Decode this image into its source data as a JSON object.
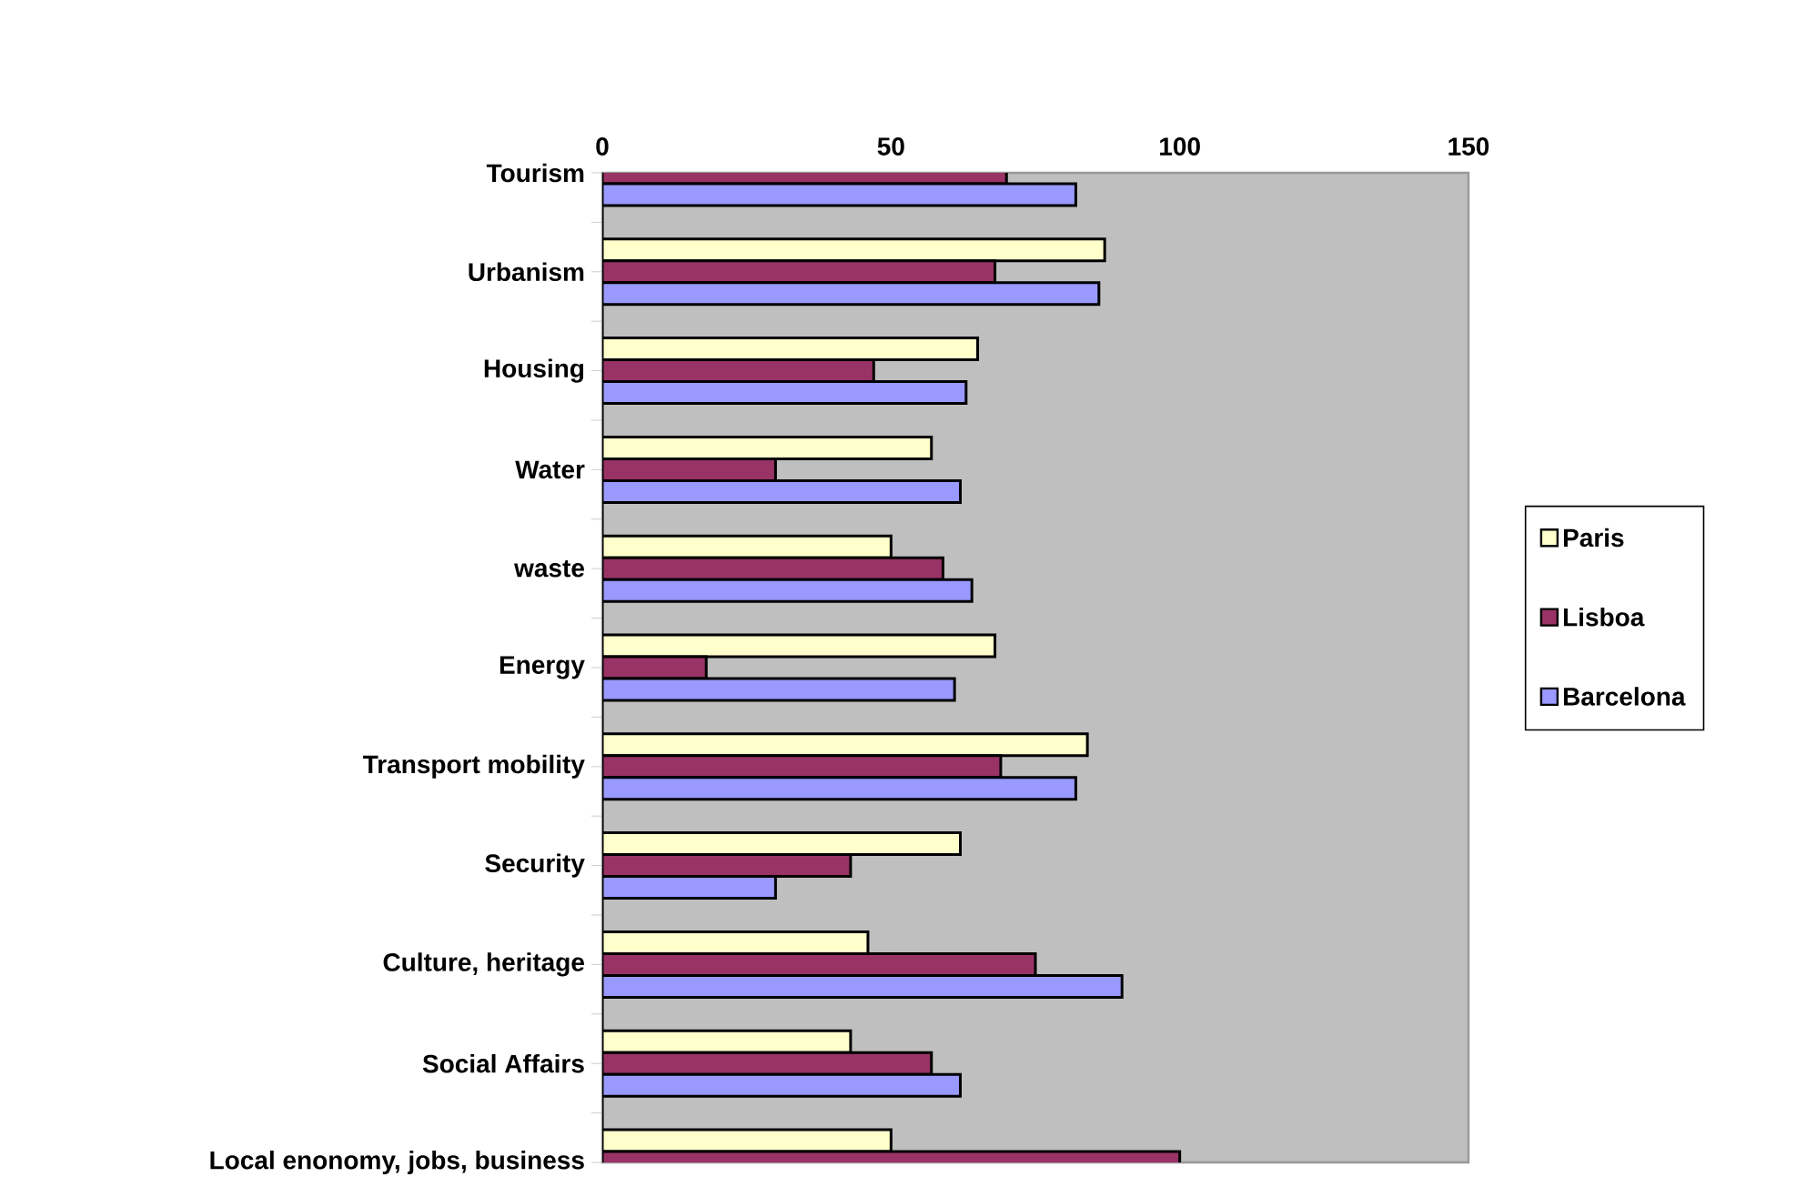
{
  "chart_data": {
    "type": "bar",
    "orientation": "horizontal",
    "categories": [
      "Tourism",
      "Urbanism",
      "Housing",
      "Water",
      "waste",
      "Energy",
      "Transport mobility",
      "Security",
      "Culture, heritage",
      "Social Affairs",
      "Local enonomy, jobs, business"
    ],
    "series": [
      {
        "name": "Paris",
        "color": "#ffffcc",
        "values": [
          null,
          87,
          65,
          57,
          50,
          68,
          84,
          62,
          46,
          43,
          50
        ]
      },
      {
        "name": "Lisboa",
        "color": "#993366",
        "values": [
          70,
          68,
          47,
          30,
          59,
          18,
          69,
          43,
          75,
          57,
          100
        ]
      },
      {
        "name": "Barcelona",
        "color": "#9999ff",
        "values": [
          82,
          86,
          63,
          62,
          64,
          61,
          82,
          30,
          90,
          62,
          null
        ]
      }
    ],
    "xlim": [
      0,
      150
    ],
    "xticks": [
      0,
      50,
      100,
      150
    ],
    "legend": "right"
  }
}
